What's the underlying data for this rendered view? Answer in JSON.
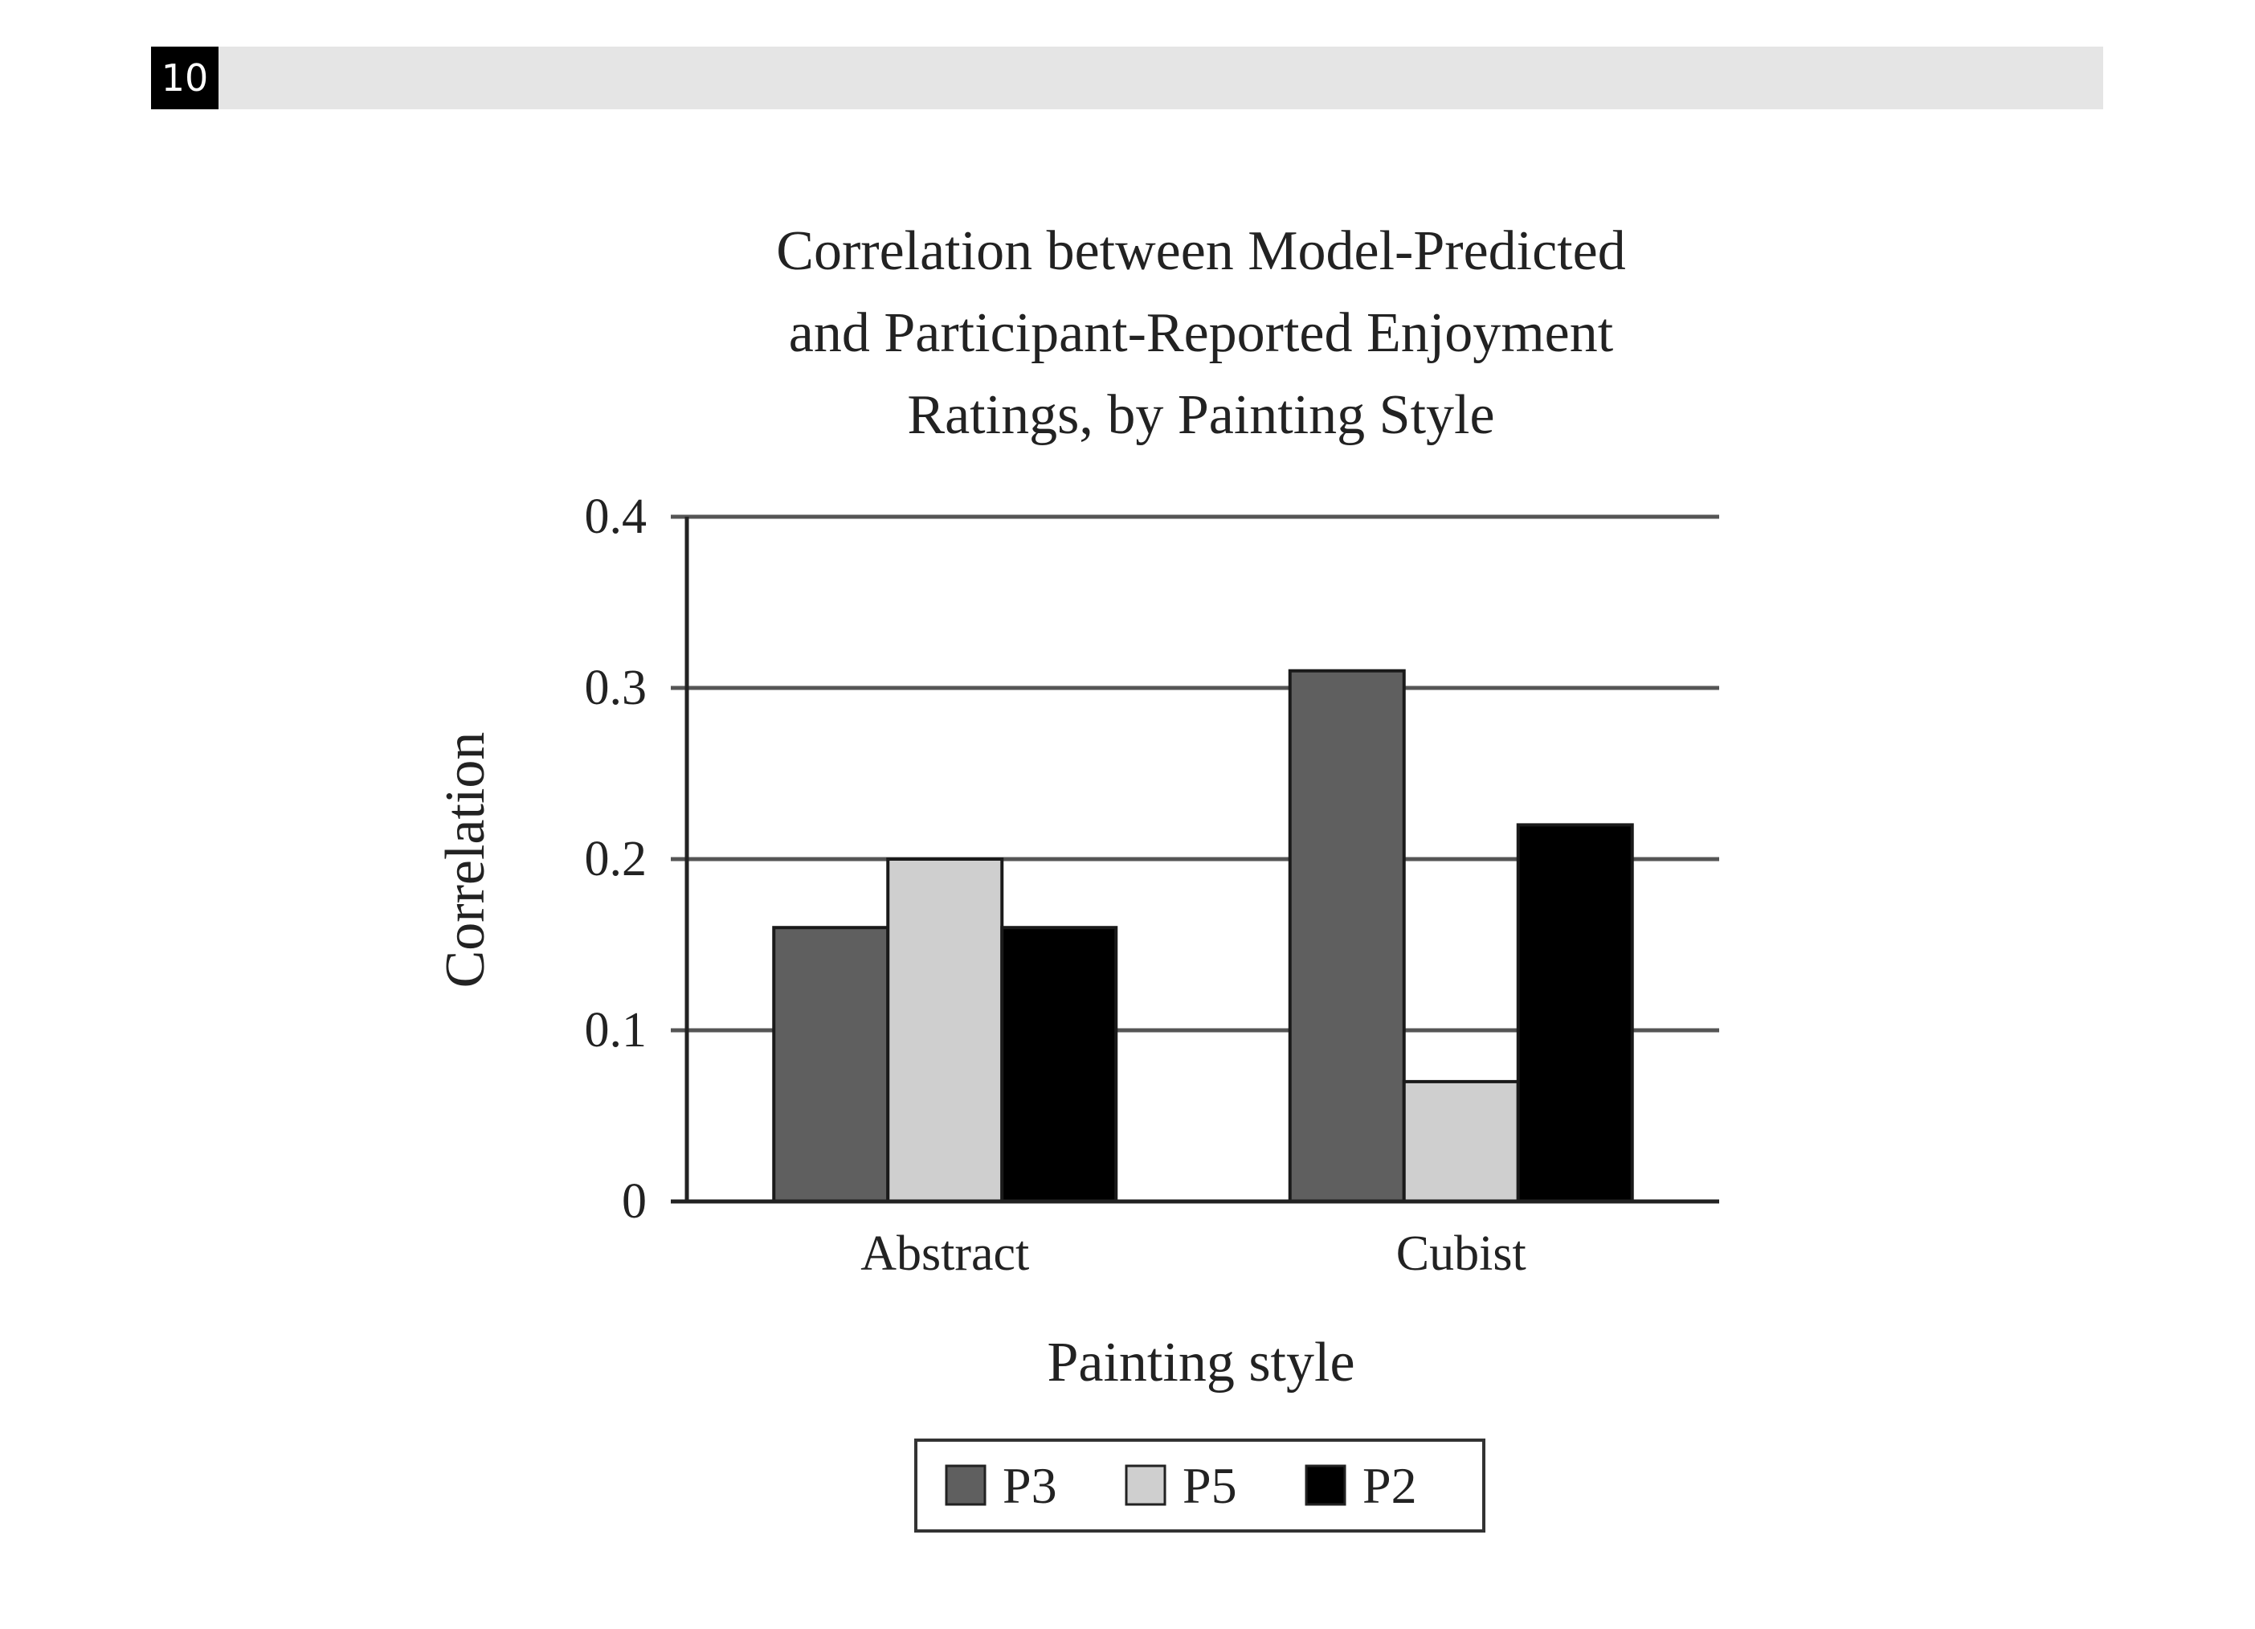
{
  "page": {
    "question_number": "10"
  },
  "chart_data": {
    "type": "bar",
    "title_lines": [
      "Correlation between Model-Predicted",
      "and Participant-Reported Enjoyment",
      "Ratings, by Painting Style"
    ],
    "xlabel": "Painting style",
    "ylabel": "Correlation",
    "categories": [
      "Abstract",
      "Cubist"
    ],
    "ylim": [
      0,
      0.4
    ],
    "yticks": [
      0,
      0.1,
      0.2,
      0.3,
      0.4
    ],
    "ytick_labels": [
      "0",
      "0.1",
      "0.2",
      "0.3",
      "0.4"
    ],
    "grid": true,
    "legend_position": "bottom",
    "series": [
      {
        "name": "P3",
        "color": "#5f5f5f",
        "values": [
          0.16,
          0.31
        ]
      },
      {
        "name": "P5",
        "color": "#cfcfcf",
        "values": [
          0.2,
          0.07
        ]
      },
      {
        "name": "P2",
        "color": "#000000",
        "values": [
          0.16,
          0.22
        ]
      }
    ]
  }
}
